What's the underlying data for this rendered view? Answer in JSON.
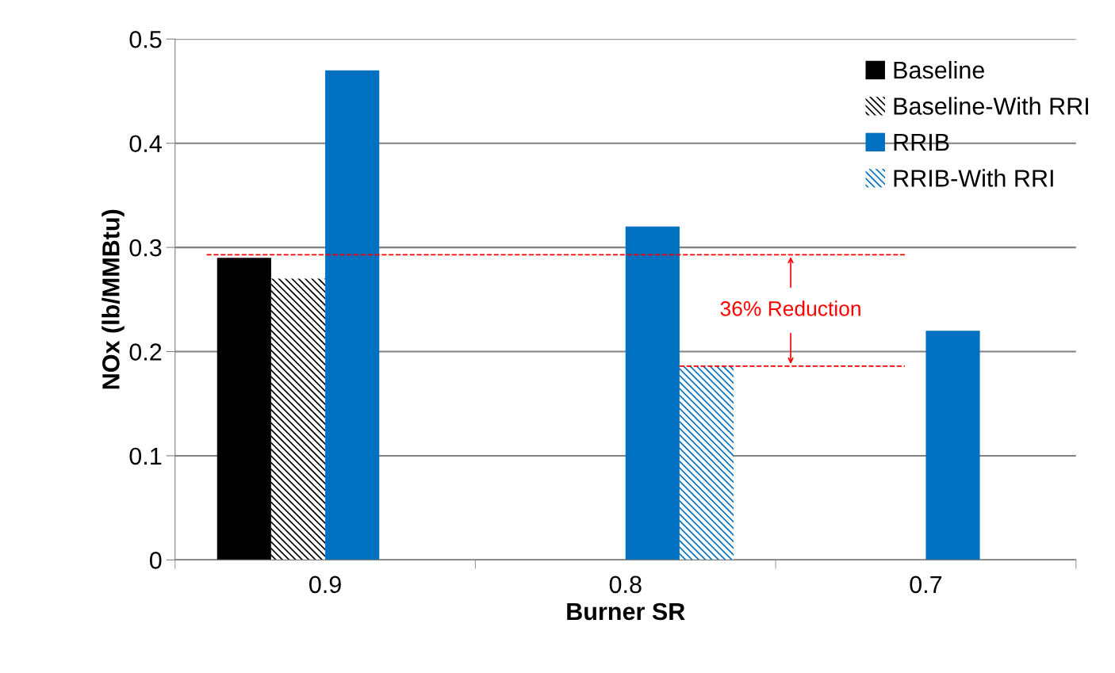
{
  "chart_data": {
    "type": "bar",
    "xlabel": "Burner SR",
    "ylabel": "NOx (lb/MMBtu)",
    "categories": [
      "0.9",
      "0.8",
      "0.7"
    ],
    "series": [
      {
        "name": "Baseline",
        "color": "#000000",
        "values": [
          0.29,
          null,
          null
        ]
      },
      {
        "name": "Baseline-With RRI",
        "color": "#000000",
        "values": [
          0.27,
          null,
          null
        ]
      },
      {
        "name": "RRIB",
        "color": "#0070c0",
        "values": [
          0.47,
          0.32,
          0.22
        ]
      },
      {
        "name": "RRIB-With RRI",
        "color": "#0070c0",
        "values": [
          null,
          0.186,
          null
        ]
      }
    ],
    "ylim": [
      0,
      0.5
    ],
    "yticks": [
      0,
      0.1,
      0.2,
      0.3,
      0.4,
      0.5
    ],
    "ref_lines": [
      {
        "axis": "y",
        "value": 0.293,
        "color": "#ff0000",
        "line_style": "dashed"
      },
      {
        "axis": "y",
        "value": 0.186,
        "color": "#ff0000",
        "line_style": "dashed"
      }
    ],
    "annotations": [
      "36% Reduction"
    ],
    "grid": "y",
    "legend": "top right"
  }
}
